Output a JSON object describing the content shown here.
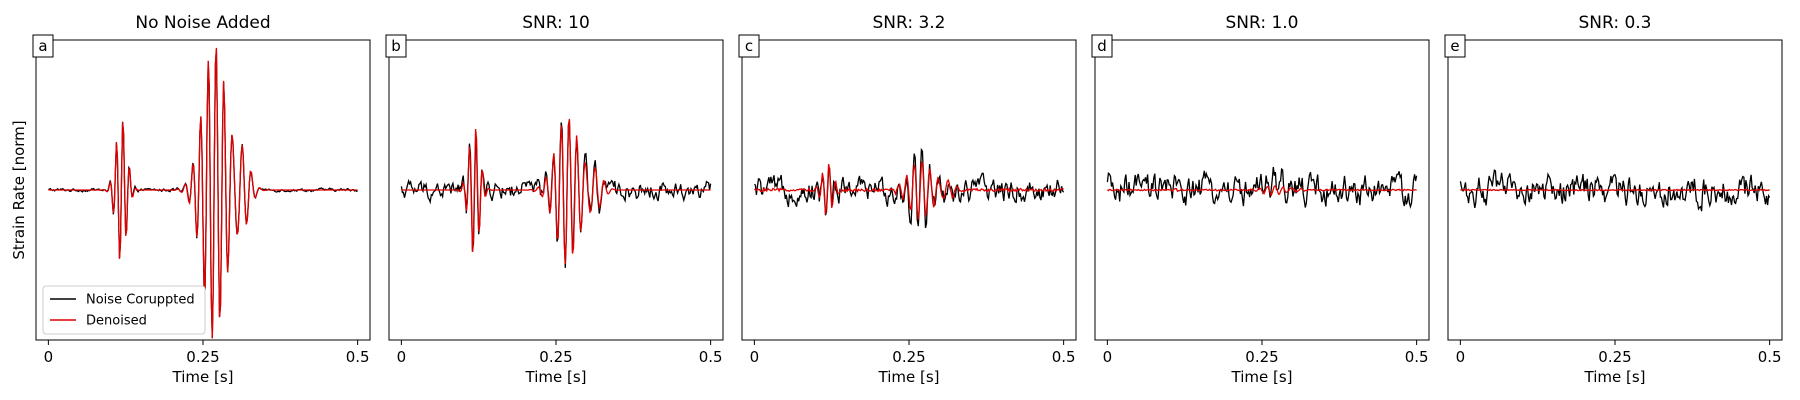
{
  "figure": {
    "ylabel": "Strain Rate [norm]"
  },
  "legend": {
    "entries": [
      "Noise Coruppted",
      "Denoised"
    ]
  },
  "colors": {
    "noisy": "#000000",
    "denoised": "#e00000"
  },
  "chart_data": [
    {
      "type": "line",
      "panel_label": "a",
      "title": "No Noise Added",
      "xlabel": "Time [s]",
      "xticks": [
        "0",
        "0.25",
        "0.5"
      ],
      "xlim": [
        -0.02,
        0.52
      ],
      "ylim": [
        -1.0,
        1.0
      ],
      "noise_level": 0.01,
      "event1_amp": 0.5,
      "event2_amp": 1.0,
      "denoise_amp": 1.0,
      "denoise_residual": 0.0,
      "series": [
        {
          "name": "Noise Coruppted"
        },
        {
          "name": "Denoised"
        }
      ]
    },
    {
      "type": "line",
      "panel_label": "b",
      "title": "SNR: 10",
      "xlabel": "Time [s]",
      "xticks": [
        "0",
        "0.25",
        "0.5"
      ],
      "xlim": [
        -0.02,
        0.52
      ],
      "ylim": [
        -1.0,
        1.0
      ],
      "noise_level": 0.06,
      "event1_amp": 0.45,
      "event2_amp": 0.5,
      "denoise_amp": 1.0,
      "denoise_residual": 0.0,
      "series": [
        {
          "name": "Noise Coruppted"
        },
        {
          "name": "Denoised"
        }
      ]
    },
    {
      "type": "line",
      "panel_label": "c",
      "title": "SNR: 3.2",
      "xlabel": "Time [s]",
      "xticks": [
        "0",
        "0.25",
        "0.5"
      ],
      "xlim": [
        -0.02,
        0.52
      ],
      "ylim": [
        -1.0,
        1.0
      ],
      "noise_level": 0.08,
      "event1_amp": 0.2,
      "event2_amp": 0.22,
      "denoise_amp": 0.9,
      "denoise_residual": 0.01,
      "series": [
        {
          "name": "Noise Coruppted"
        },
        {
          "name": "Denoised"
        }
      ]
    },
    {
      "type": "line",
      "panel_label": "d",
      "title": "SNR: 1.0",
      "xlabel": "Time [s]",
      "xticks": [
        "0",
        "0.25",
        "0.5"
      ],
      "xlim": [
        -0.02,
        0.52
      ],
      "ylim": [
        -1.0,
        1.0
      ],
      "noise_level": 0.1,
      "event1_amp": 0.02,
      "event2_amp": 0.06,
      "denoise_amp": 0.5,
      "denoise_residual": 0.005,
      "series": [
        {
          "name": "Noise Coruppted"
        },
        {
          "name": "Denoised"
        }
      ]
    },
    {
      "type": "line",
      "panel_label": "e",
      "title": "SNR: 0.3",
      "xlabel": "Time [s]",
      "xticks": [
        "0",
        "0.25",
        "0.5"
      ],
      "xlim": [
        -0.02,
        0.52
      ],
      "ylim": [
        -1.0,
        1.0
      ],
      "noise_level": 0.1,
      "event1_amp": 0.0,
      "event2_amp": 0.0,
      "denoise_amp": 0.0,
      "denoise_residual": 0.004,
      "series": [
        {
          "name": "Noise Coruppted"
        },
        {
          "name": "Denoised"
        }
      ]
    }
  ]
}
